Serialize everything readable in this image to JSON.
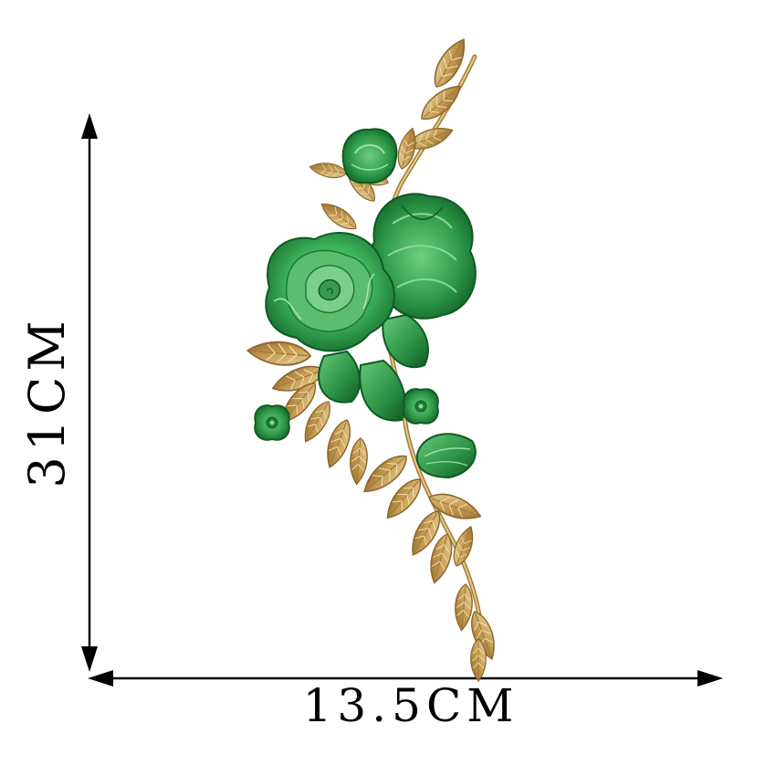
{
  "dimensions": {
    "height_label": "31CM",
    "width_label": "13.5CM"
  },
  "product": {
    "name_icon": "embroidered-flower-applique",
    "colors": {
      "petal_light": "#5fc776",
      "petal_mid": "#2f9e4a",
      "petal_dark": "#136b2a",
      "leaf_gold": "#c9a15a",
      "leaf_gold_dark": "#8c6428",
      "leaf_gold_light": "#e6cf94"
    }
  },
  "arrows": {
    "color": "#000000"
  }
}
